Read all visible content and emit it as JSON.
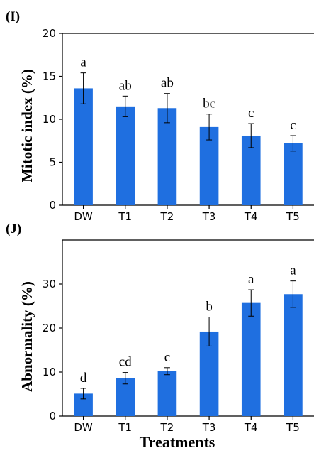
{
  "chart_data": [
    {
      "type": "bar",
      "panel_label": "(I)",
      "ylabel": "Mitotic index (%)",
      "xlabel": "",
      "categories": [
        "DW",
        "T1",
        "T2",
        "T3",
        "T4",
        "T5"
      ],
      "values": [
        13.6,
        11.5,
        11.3,
        9.1,
        8.1,
        7.2
      ],
      "errors": [
        1.8,
        1.2,
        1.7,
        1.5,
        1.4,
        0.9
      ],
      "significance": [
        "a",
        "ab",
        "ab",
        "bc",
        "c",
        "c"
      ],
      "ylim": [
        0,
        20
      ],
      "yticks": [
        0,
        5,
        10,
        15,
        20
      ],
      "bar_color": "#1f6fe0",
      "grid": false
    },
    {
      "type": "bar",
      "panel_label": "(J)",
      "ylabel": "Abnormality (%)",
      "xlabel": "Treatments",
      "categories": [
        "DW",
        "T1",
        "T2",
        "T3",
        "T4",
        "T5"
      ],
      "values": [
        5.1,
        8.6,
        10.2,
        19.2,
        25.7,
        27.7
      ],
      "errors": [
        1.2,
        1.3,
        0.8,
        3.3,
        3.0,
        3.0
      ],
      "significance": [
        "d",
        "cd",
        "c",
        "b",
        "a",
        "a"
      ],
      "ylim": [
        0,
        40
      ],
      "yticks": [
        0,
        10,
        20,
        30
      ],
      "bar_color": "#1f6fe0",
      "grid": false
    }
  ]
}
